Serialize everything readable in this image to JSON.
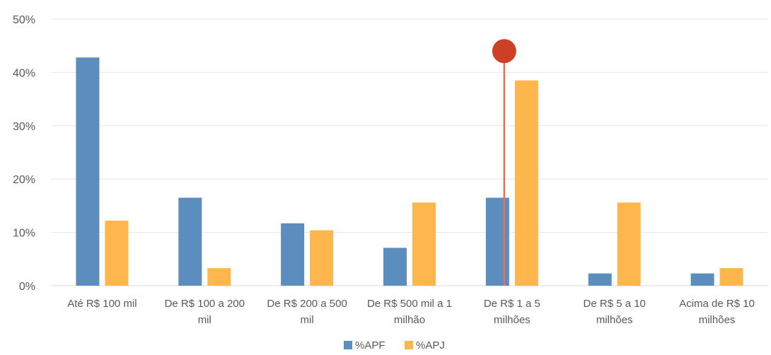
{
  "chart_data": {
    "type": "bar",
    "categories": [
      [
        "Até R$ 100 mil"
      ],
      [
        "De R$ 100 a 200",
        "mil"
      ],
      [
        "De R$ 200 a 500",
        "mil"
      ],
      [
        "De R$ 500 mil a 1",
        "milhão"
      ],
      [
        "De R$ 1 a 5",
        "milhões"
      ],
      [
        "De R$ 5 a 10",
        "milhões"
      ],
      [
        "Acima de R$ 10",
        "milhões"
      ]
    ],
    "series": [
      {
        "name": "%APF",
        "color": "#5B8DBE",
        "values": [
          42.8,
          16.5,
          11.7,
          7.1,
          16.5,
          2.3,
          2.3
        ]
      },
      {
        "name": "%APJ",
        "color": "#FFB74D",
        "values": [
          12.2,
          3.3,
          10.4,
          15.6,
          38.5,
          15.6,
          3.3
        ]
      }
    ],
    "ylim": [
      0,
      50
    ],
    "yticks": [
      0,
      10,
      20,
      30,
      40,
      50
    ],
    "ytick_labels": [
      "0%",
      "10%",
      "20%",
      "30%",
      "40%",
      "50%"
    ],
    "grid": true,
    "legend_position": "bottom",
    "marker": {
      "category_index": 4,
      "value": 44,
      "color": "#CC4125",
      "line_color": "#E0705A"
    }
  }
}
